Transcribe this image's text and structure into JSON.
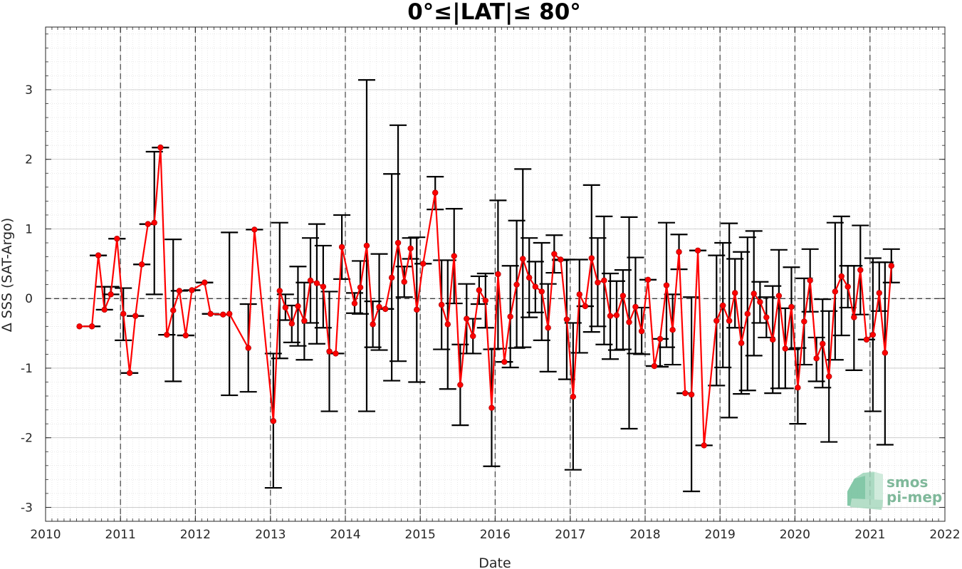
{
  "chart_data": {
    "type": "line",
    "title": "0°≤|LAT|≤ 80°",
    "xlabel": "Date",
    "ylabel": "Δ SSS (SAT-Argo)",
    "xlim": [
      "2010-01-01",
      "2022-01-01"
    ],
    "ylim": [
      -3.2,
      3.9
    ],
    "x_ticks": [
      "2010",
      "2011",
      "2012",
      "2013",
      "2014",
      "2015",
      "2016",
      "2017",
      "2018",
      "2019",
      "2020",
      "2021",
      "2022"
    ],
    "y_ticks": [
      "3",
      "2",
      "1",
      "0",
      "-1",
      "-2",
      "-3"
    ],
    "grid": true,
    "zero_line": true,
    "year_dividers": true,
    "series": [
      {
        "color": "#ff0000",
        "errorbar_color": "#000000",
        "points": [
          {
            "x": "2010-06-15",
            "y": -0.4
          },
          {
            "x": "2010-08-15",
            "y": -0.4,
            "lo": -0.4,
            "hi": -0.4
          },
          {
            "x": "2010-09-15",
            "y": 0.62,
            "lo": 0.62,
            "hi": 0.62
          },
          {
            "x": "2010-10-15",
            "y": -0.16,
            "lo": -0.16,
            "hi": 0.17
          },
          {
            "x": "2010-11-15",
            "y": 0.06,
            "lo": 0.06,
            "hi": 0.17
          },
          {
            "x": "2010-12-15",
            "y": 0.86,
            "lo": 0.86,
            "hi": 0.86
          },
          {
            "x": "2011-01-15",
            "y": -0.22,
            "lo": -0.6,
            "hi": 0.15
          },
          {
            "x": "2011-02-15",
            "y": -1.07,
            "lo": -1.07,
            "hi": -1.07
          },
          {
            "x": "2011-03-15",
            "y": -0.25,
            "lo": -0.25,
            "hi": -0.25
          },
          {
            "x": "2011-04-15",
            "y": 0.49,
            "lo": 0.49,
            "hi": 0.49
          },
          {
            "x": "2011-05-15",
            "y": 1.07,
            "lo": 1.07,
            "hi": 1.07
          },
          {
            "x": "2011-06-15",
            "y": 1.09,
            "lo": 0.06,
            "hi": 2.11
          },
          {
            "x": "2011-07-15",
            "y": 2.17,
            "lo": 2.17,
            "hi": 2.17
          },
          {
            "x": "2011-08-15",
            "y": -0.52,
            "lo": -0.52,
            "hi": -0.52
          },
          {
            "x": "2011-09-15",
            "y": -0.17,
            "lo": -1.19,
            "hi": 0.85
          },
          {
            "x": "2011-10-15",
            "y": 0.11,
            "lo": 0.11,
            "hi": 0.11
          },
          {
            "x": "2011-11-15",
            "y": -0.53,
            "lo": -0.53,
            "hi": -0.53
          },
          {
            "x": "2011-12-15",
            "y": 0.12,
            "lo": 0.12,
            "hi": 0.12
          },
          {
            "x": "2012-02-15",
            "y": 0.23,
            "lo": 0.23,
            "hi": 0.23
          },
          {
            "x": "2012-03-15",
            "y": -0.22,
            "lo": -0.22,
            "hi": -0.22
          },
          {
            "x": "2012-05-15",
            "y": -0.23,
            "lo": -0.23,
            "hi": -0.23
          },
          {
            "x": "2012-06-15",
            "y": -0.22,
            "lo": -1.39,
            "hi": 0.95
          },
          {
            "x": "2012-09-15",
            "y": -0.71,
            "lo": -1.34,
            "hi": -0.08
          },
          {
            "x": "2012-10-15",
            "y": 0.99,
            "lo": 0.99,
            "hi": 0.99
          },
          {
            "x": "2013-01-15",
            "y": -1.76,
            "lo": -2.72,
            "hi": -0.79
          },
          {
            "x": "2013-02-15",
            "y": 0.11,
            "lo": -0.86,
            "hi": 1.09
          },
          {
            "x": "2013-03-15",
            "y": -0.13,
            "lo": -0.31,
            "hi": 0.06
          },
          {
            "x": "2013-04-15",
            "y": -0.36,
            "lo": -0.63,
            "hi": -0.1
          },
          {
            "x": "2013-05-15",
            "y": -0.11,
            "lo": -0.68,
            "hi": 0.46
          },
          {
            "x": "2013-06-15",
            "y": -0.32,
            "lo": -0.88,
            "hi": 0.23
          },
          {
            "x": "2013-07-15",
            "y": 0.26,
            "lo": -0.35,
            "hi": 0.87
          },
          {
            "x": "2013-08-15",
            "y": 0.22,
            "lo": -0.65,
            "hi": 1.07
          },
          {
            "x": "2013-09-15",
            "y": 0.17,
            "lo": -0.42,
            "hi": 0.76
          },
          {
            "x": "2013-10-15",
            "y": -0.76,
            "lo": -1.62,
            "hi": 0.1
          },
          {
            "x": "2013-11-15",
            "y": -0.79,
            "lo": -0.79,
            "hi": -0.79
          },
          {
            "x": "2013-12-15",
            "y": 0.74,
            "lo": 0.28,
            "hi": 1.2
          },
          {
            "x": "2014-02-15",
            "y": -0.07,
            "lo": -0.21,
            "hi": 0.08
          },
          {
            "x": "2014-03-15",
            "y": 0.16,
            "lo": -0.22,
            "hi": 0.54
          },
          {
            "x": "2014-04-15",
            "y": 0.76,
            "lo": -1.62,
            "hi": 3.14
          },
          {
            "x": "2014-05-15",
            "y": -0.37,
            "lo": -0.7,
            "hi": -0.04
          },
          {
            "x": "2014-06-15",
            "y": -0.12,
            "lo": -0.74,
            "hi": 0.64
          },
          {
            "x": "2014-07-15",
            "y": -0.15,
            "lo": -0.15,
            "hi": -0.15
          },
          {
            "x": "2014-08-15",
            "y": 0.3,
            "lo": -1.18,
            "hi": 1.79
          },
          {
            "x": "2014-09-15",
            "y": 0.8,
            "lo": -0.9,
            "hi": 2.49
          },
          {
            "x": "2014-10-15",
            "y": 0.24,
            "lo": 0.02,
            "hi": 0.46
          },
          {
            "x": "2014-11-15",
            "y": 0.72,
            "lo": 0.57,
            "hi": 0.87
          },
          {
            "x": "2014-12-15",
            "y": -0.16,
            "lo": -1.2,
            "hi": 0.88
          },
          {
            "x": "2015-01-15",
            "y": 0.5,
            "lo": 0.5,
            "hi": 0.5
          },
          {
            "x": "2015-03-15",
            "y": 1.52,
            "lo": 1.28,
            "hi": 1.75
          },
          {
            "x": "2015-04-15",
            "y": -0.09,
            "lo": -0.73,
            "hi": 0.55
          },
          {
            "x": "2015-05-15",
            "y": -0.37,
            "lo": -1.3,
            "hi": 0.55
          },
          {
            "x": "2015-06-15",
            "y": 0.61,
            "lo": -0.07,
            "hi": 1.29
          },
          {
            "x": "2015-07-15",
            "y": -1.24,
            "lo": -1.82,
            "hi": -0.66
          },
          {
            "x": "2015-08-15",
            "y": -0.29,
            "lo": -0.79,
            "hi": 0.21
          },
          {
            "x": "2015-09-15",
            "y": -0.54,
            "lo": -0.79,
            "hi": -0.29
          },
          {
            "x": "2015-10-15",
            "y": 0.12,
            "lo": -0.08,
            "hi": 0.32
          },
          {
            "x": "2015-11-15",
            "y": -0.03,
            "lo": -0.42,
            "hi": 0.36
          },
          {
            "x": "2015-12-15",
            "y": -1.57,
            "lo": -2.41,
            "hi": -0.73
          },
          {
            "x": "2016-01-15",
            "y": 0.35,
            "lo": -0.72,
            "hi": 1.41
          },
          {
            "x": "2016-02-15",
            "y": -0.91,
            "lo": -0.91,
            "hi": -0.91
          },
          {
            "x": "2016-03-15",
            "y": -0.26,
            "lo": -0.99,
            "hi": 0.47
          },
          {
            "x": "2016-04-15",
            "y": 0.2,
            "lo": -0.71,
            "hi": 1.12
          },
          {
            "x": "2016-05-15",
            "y": 0.57,
            "lo": -0.7,
            "hi": 1.86
          },
          {
            "x": "2016-06-15",
            "y": 0.3,
            "lo": -0.27,
            "hi": 0.87
          },
          {
            "x": "2016-07-15",
            "y": 0.17,
            "lo": -0.2,
            "hi": 0.53
          },
          {
            "x": "2016-08-15",
            "y": 0.1,
            "lo": -0.6,
            "hi": 0.8
          },
          {
            "x": "2016-09-15",
            "y": -0.42,
            "lo": -1.05,
            "hi": 0.21
          },
          {
            "x": "2016-10-15",
            "y": 0.64,
            "lo": 0.37,
            "hi": 0.91
          },
          {
            "x": "2016-11-15",
            "y": 0.56,
            "lo": 0.55,
            "hi": 0.56
          },
          {
            "x": "2016-12-15",
            "y": -0.3,
            "lo": -1.16,
            "hi": 0.56
          },
          {
            "x": "2017-01-15",
            "y": -1.41,
            "lo": -2.46,
            "hi": -0.35
          },
          {
            "x": "2017-02-15",
            "y": 0.06,
            "lo": -0.78,
            "hi": 0.56
          },
          {
            "x": "2017-03-15",
            "y": -0.11,
            "lo": -0.11,
            "hi": -0.11
          },
          {
            "x": "2017-04-15",
            "y": 0.58,
            "lo": -0.48,
            "hi": 1.63
          },
          {
            "x": "2017-05-15",
            "y": 0.23,
            "lo": -0.4,
            "hi": 0.87
          },
          {
            "x": "2017-06-15",
            "y": 0.26,
            "lo": -0.66,
            "hi": 1.18
          },
          {
            "x": "2017-07-15",
            "y": -0.25,
            "lo": -0.87,
            "hi": 0.36
          },
          {
            "x": "2017-08-15",
            "y": -0.24,
            "lo": -0.74,
            "hi": 0.25
          },
          {
            "x": "2017-09-15",
            "y": 0.04,
            "lo": -0.73,
            "hi": 0.41
          },
          {
            "x": "2017-10-15",
            "y": -0.34,
            "lo": -1.87,
            "hi": 1.17
          },
          {
            "x": "2017-11-15",
            "y": -0.12,
            "lo": -0.79,
            "hi": 0.59
          },
          {
            "x": "2017-12-15",
            "y": -0.47,
            "lo": -0.8,
            "hi": -0.13
          },
          {
            "x": "2018-01-15",
            "y": 0.27,
            "lo": 0.27,
            "hi": 0.27
          },
          {
            "x": "2018-02-15",
            "y": -0.97,
            "lo": -0.97,
            "hi": -0.97
          },
          {
            "x": "2018-03-15",
            "y": -0.58,
            "lo": -0.98,
            "hi": -0.58
          },
          {
            "x": "2018-04-15",
            "y": 0.19,
            "lo": -0.7,
            "hi": 1.09
          },
          {
            "x": "2018-05-15",
            "y": -0.45,
            "lo": -0.95,
            "hi": 0.06
          },
          {
            "x": "2018-06-15",
            "y": 0.67,
            "lo": 0.42,
            "hi": 0.92
          },
          {
            "x": "2018-07-15",
            "y": -1.36,
            "lo": -1.36,
            "hi": -1.36
          },
          {
            "x": "2018-08-15",
            "y": -1.38,
            "lo": -2.77,
            "hi": 0.02
          },
          {
            "x": "2018-09-15",
            "y": 0.69,
            "lo": 0.69,
            "hi": 0.69
          },
          {
            "x": "2018-10-15",
            "y": -2.11,
            "lo": -2.11,
            "hi": -2.11
          },
          {
            "x": "2018-12-15",
            "y": -0.32,
            "lo": -1.25,
            "hi": 0.62
          },
          {
            "x": "2019-01-15",
            "y": -0.1,
            "lo": -0.99,
            "hi": 0.8
          },
          {
            "x": "2019-02-15",
            "y": -0.32,
            "lo": -1.71,
            "hi": 1.08
          },
          {
            "x": "2019-03-15",
            "y": 0.08,
            "lo": -0.42,
            "hi": 0.57
          },
          {
            "x": "2019-04-15",
            "y": -0.64,
            "lo": -1.37,
            "hi": 0.67
          },
          {
            "x": "2019-05-15",
            "y": -0.22,
            "lo": -1.32,
            "hi": 0.88
          },
          {
            "x": "2019-06-15",
            "y": 0.07,
            "lo": -0.82,
            "hi": 0.97
          },
          {
            "x": "2019-07-15",
            "y": -0.05,
            "lo": -0.35,
            "hi": 0.24
          },
          {
            "x": "2019-08-15",
            "y": -0.27,
            "lo": -0.56,
            "hi": 0.02
          },
          {
            "x": "2019-09-15",
            "y": -0.59,
            "lo": -1.36,
            "hi": 0.18
          },
          {
            "x": "2019-10-15",
            "y": 0.04,
            "lo": -1.29,
            "hi": 0.7
          },
          {
            "x": "2019-11-15",
            "y": -0.72,
            "lo": -1.29,
            "hi": -0.14
          },
          {
            "x": "2019-12-15",
            "y": -0.12,
            "lo": -0.73,
            "hi": 0.45
          },
          {
            "x": "2020-01-15",
            "y": -1.28,
            "lo": -1.8,
            "hi": -0.71
          },
          {
            "x": "2020-02-15",
            "y": -0.33,
            "lo": -0.95,
            "hi": 0.29
          },
          {
            "x": "2020-03-15",
            "y": 0.26,
            "lo": -0.19,
            "hi": 0.71
          },
          {
            "x": "2020-04-15",
            "y": -0.86,
            "lo": -1.19,
            "hi": -0.56
          },
          {
            "x": "2020-05-15",
            "y": -0.65,
            "lo": -1.28,
            "hi": -0.01
          },
          {
            "x": "2020-06-15",
            "y": -1.12,
            "lo": -2.06,
            "hi": -0.18
          },
          {
            "x": "2020-07-15",
            "y": 0.1,
            "lo": -0.88,
            "hi": 1.09
          },
          {
            "x": "2020-08-15",
            "y": 0.32,
            "lo": -0.53,
            "hi": 1.18
          },
          {
            "x": "2020-09-15",
            "y": 0.17,
            "lo": -0.13,
            "hi": 0.47
          },
          {
            "x": "2020-10-15",
            "y": -0.27,
            "lo": -1.03,
            "hi": 0.47
          },
          {
            "x": "2020-11-15",
            "y": 0.41,
            "lo": -0.23,
            "hi": 1.05
          },
          {
            "x": "2020-12-15",
            "y": -0.59,
            "lo": -0.59,
            "hi": -0.59
          },
          {
            "x": "2021-01-15",
            "y": -0.52,
            "lo": -1.62,
            "hi": 0.58
          },
          {
            "x": "2021-02-15",
            "y": 0.08,
            "lo": -0.18,
            "hi": 0.52
          },
          {
            "x": "2021-03-15",
            "y": -0.78,
            "lo": -2.1,
            "hi": 0.52
          },
          {
            "x": "2021-04-15",
            "y": 0.47,
            "lo": 0.23,
            "hi": 0.71
          }
        ]
      }
    ]
  },
  "logo": {
    "line1": "smos",
    "line2": "pi-mep"
  }
}
